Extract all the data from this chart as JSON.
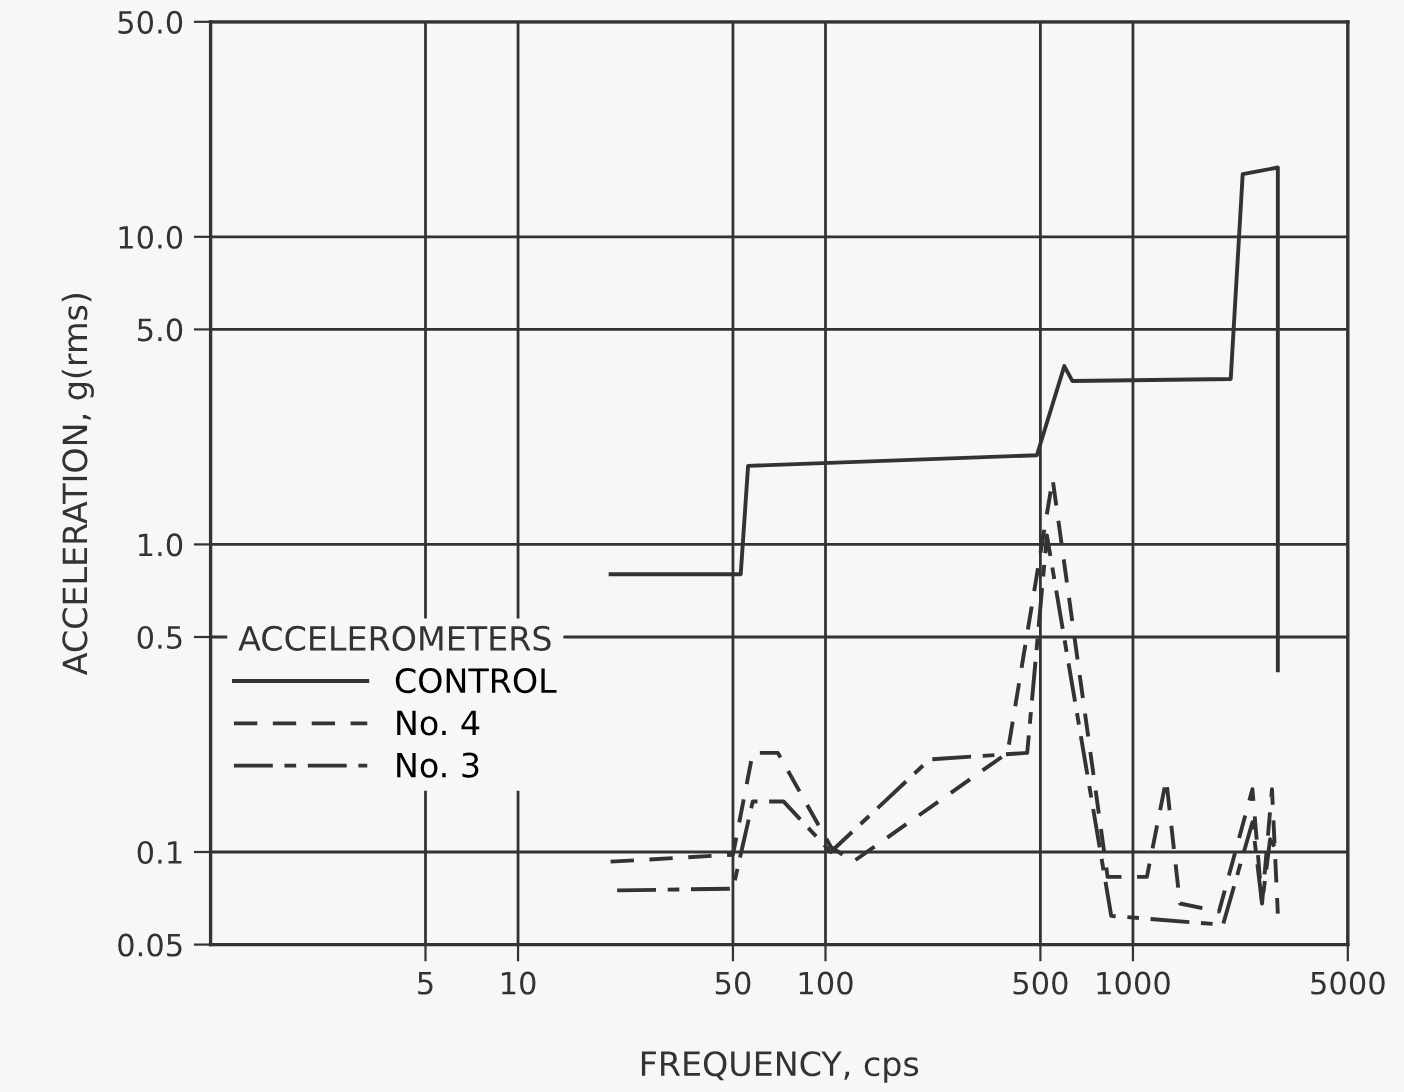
{
  "chart_data": {
    "type": "line",
    "xlabel": "FREQUENCY, cps",
    "ylabel": "ACCELERATION, g(rms)",
    "legend_title": "ACCELEROMETERS",
    "log": "xy",
    "grid": true,
    "legend": "left",
    "marker": "none",
    "xlim": [
      1,
      5000
    ],
    "xticks": [
      5,
      10,
      50,
      100,
      500,
      1000,
      5000
    ],
    "ylim": [
      0.05,
      50
    ],
    "yticks": [
      0.05,
      0.1,
      0.5,
      {
        "value": 1,
        "label": "1.0"
      },
      {
        "value": 5,
        "label": "5.0"
      },
      {
        "value": 10,
        "label": "10.0"
      },
      {
        "value": 50,
        "label": "50.0"
      }
    ],
    "series": [
      {
        "name": "CONTROL",
        "color": "#333333",
        "line_style": "solid",
        "x": [
          20,
          53,
          56,
          487,
          598,
          635,
          2080,
          2275,
          2960,
          2960
        ],
        "values": [
          0.8,
          0.8,
          1.8,
          1.95,
          3.8,
          3.4,
          3.45,
          16,
          16.8,
          0.39
        ]
      },
      {
        "name": "No. 4",
        "color": "#333333",
        "line_style": "dashed",
        "x": [
          20,
          50,
          58,
          70,
          104,
          123,
          391,
          548,
          827,
          1110,
          1283,
          1422,
          1905,
          2447,
          2630,
          2833,
          2960
        ],
        "values": [
          0.093,
          0.098,
          0.21,
          0.21,
          0.104,
          0.093,
          0.21,
          1.63,
          0.083,
          0.083,
          0.172,
          0.068,
          0.064,
          0.16,
          0.068,
          0.16,
          0.063
        ]
      },
      {
        "name": "No. 3",
        "color": "#333333",
        "line_style": "dashdot",
        "x": [
          21,
          50,
          58,
          73,
          104,
          218,
          453,
          525,
          850,
          1963,
          2447,
          2630,
          2793,
          2960
        ],
        "values": [
          0.075,
          0.076,
          0.146,
          0.146,
          0.1,
          0.2,
          0.21,
          1.07,
          0.062,
          0.058,
          0.125,
          0.068,
          0.11,
          0.1
        ]
      }
    ]
  }
}
